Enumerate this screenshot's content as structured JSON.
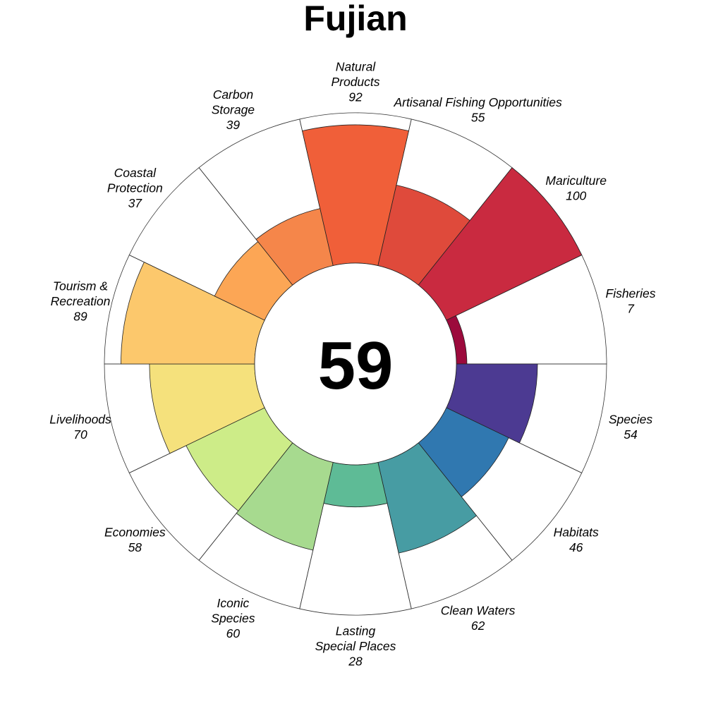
{
  "chart_data": {
    "type": "rose",
    "title": "Fujian",
    "center_value": "59",
    "max_value": 100,
    "goals": [
      {
        "label": "Natural Products",
        "value": 92,
        "display": "92",
        "color": "#F05F39"
      },
      {
        "label": "Artisanal Fishing Opportunities",
        "value": 55,
        "display": "55",
        "color": "#DF4A3B"
      },
      {
        "label": "Mariculture",
        "value": 100,
        "display": "100",
        "color": "#C92A40"
      },
      {
        "label": "Fisheries",
        "value": 7,
        "display": "7",
        "color": "#9C0A3C"
      },
      {
        "label": "Species",
        "value": 54,
        "display": "54",
        "color": "#4C3A92"
      },
      {
        "label": "Habitats",
        "value": 46,
        "display": "46",
        "color": "#3078B0"
      },
      {
        "label": "Clean Waters",
        "value": 62,
        "display": "62",
        "color": "#479CA3"
      },
      {
        "label": "Lasting Special Places",
        "value": 28,
        "display": "28",
        "color": "#5EBB96"
      },
      {
        "label": "Iconic Species",
        "value": 60,
        "display": "60",
        "color": "#A7DA8F"
      },
      {
        "label": "Economies",
        "value": 58,
        "display": "58",
        "color": "#CDEC88"
      },
      {
        "label": "Livelihoods",
        "value": 70,
        "display": "70",
        "color": "#F5E17C"
      },
      {
        "label": "Tourism & Recreation",
        "value": 89,
        "display": "89",
        "color": "#FCC86C"
      },
      {
        "label": "Coastal Protection",
        "value": 37,
        "display": "37",
        "color": "#FCA655"
      },
      {
        "label": "Carbon Storage",
        "value": 39,
        "display": "39",
        "color": "#F5864A"
      }
    ]
  }
}
